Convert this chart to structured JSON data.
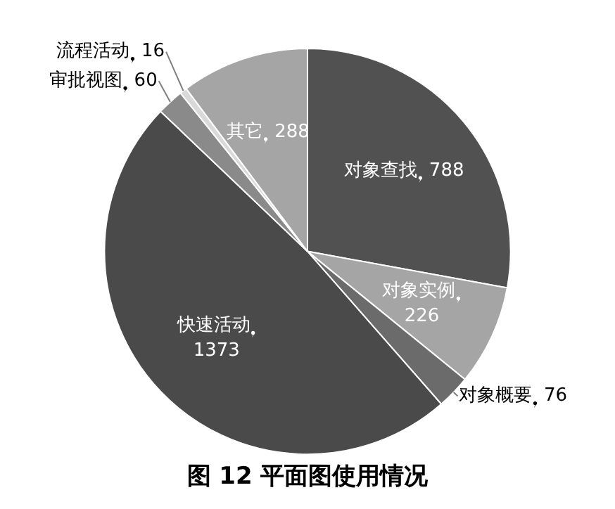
{
  "chart_data": {
    "type": "pie",
    "title": "图 12 平面图使用情况",
    "categories": [
      "对象查找",
      "对象实例",
      "对象概要",
      "快速活动",
      "审批视图",
      "流程活动",
      "其它"
    ],
    "values": [
      788,
      226,
      76,
      1373,
      60,
      16,
      288
    ],
    "colors": [
      "#515151",
      "#a5a5a5",
      "#6b6b6b",
      "#4a4a4a",
      "#8a8a8a",
      "#d9d9d9",
      "#a5a5a5"
    ],
    "data_labels": true,
    "legend": false
  }
}
